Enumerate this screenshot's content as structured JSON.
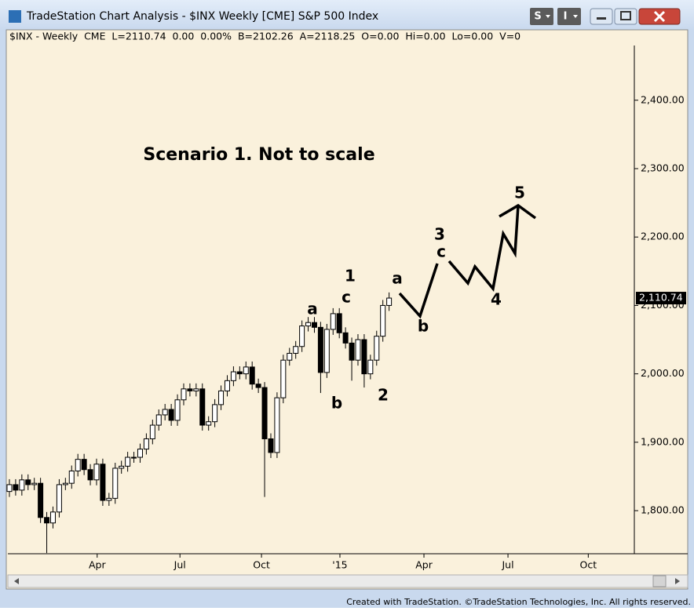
{
  "window": {
    "title": "TradeStation Chart Analysis - $INX Weekly [CME] S&P 500 Index",
    "buttons": [
      "S",
      "I"
    ],
    "footer": "Created with TradeStation. ©TradeStation Technologies, Inc. All rights reserved."
  },
  "chart_data": {
    "type": "candlestick",
    "info": "$INX - Weekly  CME  L=2110.74  0.00  0.00%  B=2102.26  A=2118.25  O=0.00  Hi=0.00  Lo=0.00  V=0",
    "annotations": [
      "Scenario 1. Not to scale",
      "a",
      "1",
      "c",
      "b",
      "2",
      "a",
      "b",
      "3",
      "c",
      "4",
      "5"
    ],
    "x": [
      0,
      1,
      2,
      3,
      4,
      5,
      6,
      7,
      8,
      9,
      10,
      11,
      12,
      13,
      14,
      15,
      16,
      17,
      18,
      19,
      20,
      21,
      22,
      23,
      24,
      25,
      26,
      27,
      28,
      29,
      30,
      31,
      32,
      33,
      34,
      35,
      36,
      37,
      38,
      39,
      40,
      41,
      42,
      43,
      44,
      45,
      46,
      47,
      48,
      49,
      50,
      51,
      52,
      53,
      54,
      55,
      56,
      57,
      58,
      59,
      60,
      61
    ],
    "open": [
      1828,
      1838,
      1830,
      1845,
      1838,
      1840,
      1790,
      1782,
      1798,
      1838,
      1840,
      1858,
      1875,
      1860,
      1845,
      1868,
      1815,
      1818,
      1862,
      1865,
      1878,
      1878,
      1890,
      1905,
      1925,
      1940,
      1948,
      1932,
      1962,
      1978,
      1975,
      1978,
      1925,
      1930,
      1955,
      1975,
      1990,
      2003,
      2000,
      2010,
      1985,
      1980,
      1905,
      1885,
      1965,
      2020,
      2030,
      2040,
      2070,
      2075,
      2068,
      2002,
      2065,
      2088,
      2060,
      2045,
      2020,
      2050,
      2000,
      2020,
      2055,
      2100
    ],
    "high": [
      1846,
      1846,
      1853,
      1853,
      1848,
      1848,
      1798,
      1806,
      1846,
      1848,
      1866,
      1883,
      1883,
      1868,
      1876,
      1876,
      1826,
      1870,
      1873,
      1886,
      1886,
      1898,
      1913,
      1933,
      1948,
      1956,
      1956,
      1970,
      1986,
      1986,
      1986,
      1986,
      1938,
      1963,
      1983,
      1998,
      2011,
      2011,
      2018,
      2018,
      1993,
      1988,
      1913,
      1973,
      2028,
      2038,
      2048,
      2078,
      2083,
      2083,
      2076,
      2073,
      2096,
      2096,
      2068,
      2053,
      2058,
      2058,
      2028,
      2063,
      2108,
      2119
    ],
    "low": [
      1820,
      1822,
      1822,
      1830,
      1830,
      1782,
      1738,
      1774,
      1790,
      1830,
      1832,
      1850,
      1852,
      1837,
      1837,
      1807,
      1807,
      1810,
      1854,
      1857,
      1870,
      1870,
      1882,
      1897,
      1917,
      1932,
      1924,
      1924,
      1954,
      1967,
      1967,
      1917,
      1917,
      1922,
      1947,
      1967,
      1982,
      1992,
      1992,
      1977,
      1972,
      1820,
      1877,
      1877,
      1957,
      2012,
      2022,
      2032,
      2062,
      2060,
      1972,
      1994,
      2057,
      2052,
      2037,
      1990,
      2012,
      1980,
      1992,
      2012,
      2047,
      2092
    ],
    "close": [
      1838,
      1830,
      1845,
      1838,
      1840,
      1790,
      1782,
      1798,
      1838,
      1840,
      1858,
      1875,
      1860,
      1845,
      1868,
      1815,
      1818,
      1862,
      1865,
      1878,
      1878,
      1890,
      1905,
      1925,
      1940,
      1948,
      1932,
      1962,
      1978,
      1975,
      1978,
      1925,
      1930,
      1955,
      1975,
      1990,
      2003,
      2000,
      2010,
      1985,
      1980,
      1905,
      1885,
      1965,
      2020,
      2030,
      2040,
      2070,
      2075,
      2068,
      2002,
      2065,
      2088,
      2060,
      2045,
      2020,
      2050,
      2000,
      2020,
      2055,
      2100,
      2110.74
    ],
    "xlim": [
      -0.25,
      100.4
    ],
    "xticks": [
      {
        "value": 14.1,
        "label": "Apr"
      },
      {
        "value": 27.4,
        "label": "Jul"
      },
      {
        "value": 40.5,
        "label": "Oct"
      },
      {
        "value": 53.1,
        "label": "'15"
      },
      {
        "value": 66.6,
        "label": "Apr"
      },
      {
        "value": 80.1,
        "label": "Jul"
      },
      {
        "value": 93,
        "label": "Oct"
      }
    ],
    "ylim": [
      1737,
      2480
    ],
    "yticks": [
      {
        "value": 1800,
        "label": "1,800.00"
      },
      {
        "value": 1900,
        "label": "1,900.00"
      },
      {
        "value": 2000,
        "label": "2,000.00"
      },
      {
        "value": 2100,
        "label": "2,100.00"
      },
      {
        "value": 2200,
        "label": "2,200.00"
      },
      {
        "value": 2300,
        "label": "2,300.00"
      },
      {
        "value": 2400,
        "label": "2,400.00"
      }
    ],
    "last_price": {
      "value": 2110.74,
      "label": "2,110.74"
    }
  }
}
